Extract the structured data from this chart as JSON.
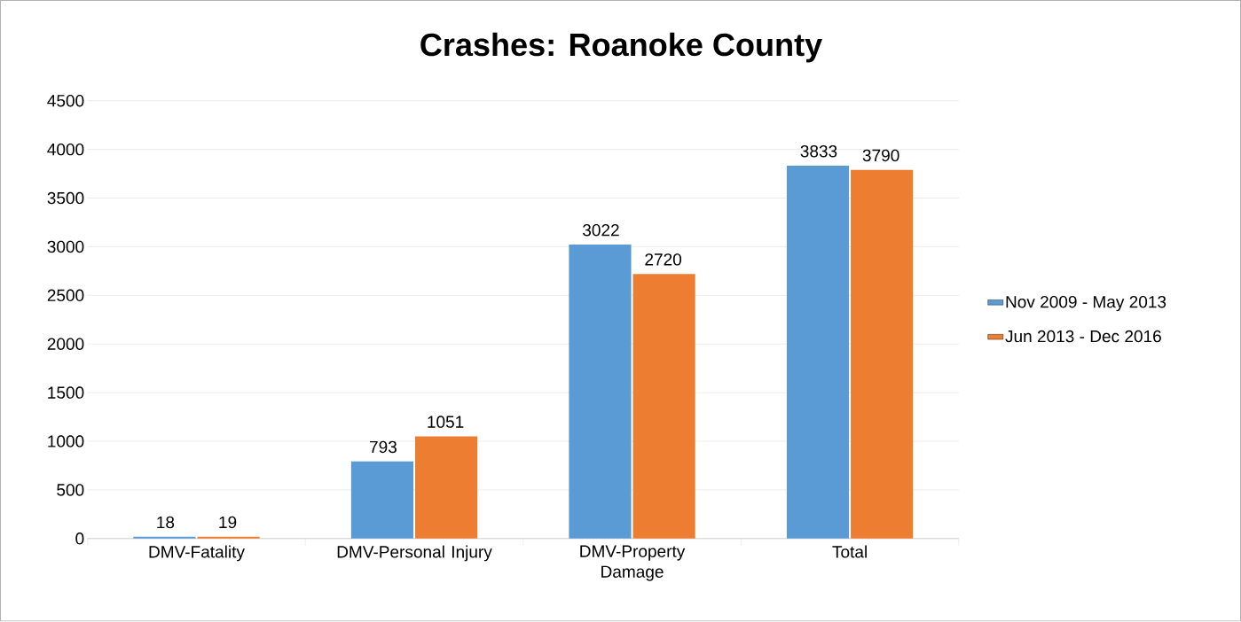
{
  "chart_data": {
    "type": "bar",
    "title": "Crashes: Roanoke County",
    "categories": [
      "DMV-Fatality",
      "DMV-Personal Injury",
      "DMV-Property Damage",
      "Total"
    ],
    "series": [
      {
        "name": "Nov 2009 - May 2013",
        "color": "#5b9bd5",
        "values": [
          18,
          793,
          3022,
          3833
        ]
      },
      {
        "name": "Jun 2013 - Dec 2016",
        "color": "#ed7d31",
        "values": [
          19,
          1051,
          2720,
          3790
        ]
      }
    ],
    "ylim": [
      0,
      4500
    ],
    "yticks": [
      0,
      500,
      1000,
      1500,
      2000,
      2500,
      3000,
      3500,
      4000,
      4500
    ],
    "grid": "y",
    "legend": "right",
    "data_labels": true
  }
}
